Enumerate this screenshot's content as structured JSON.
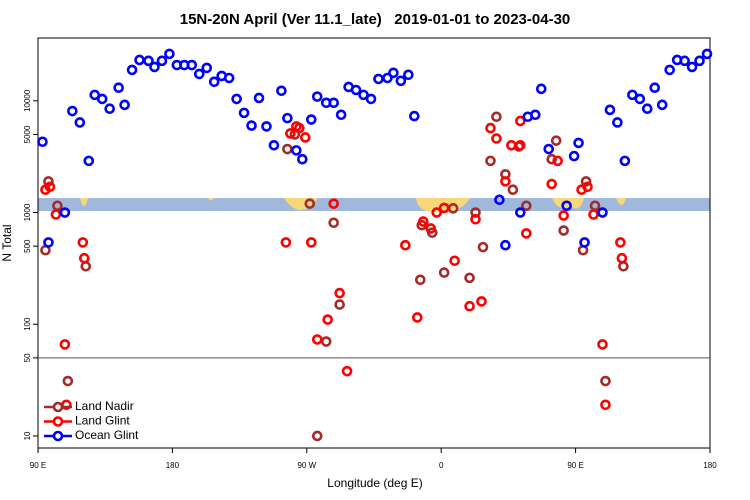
{
  "chart_data": {
    "type": "scatter",
    "title": "15N-20N April (Ver 11.1_late)   2019-01-01 to 2023-04-30",
    "xlabel": "Longitude (deg E)",
    "ylabel": "N Total",
    "xlim": [
      90,
      540
    ],
    "xticks": [
      {
        "value": 90,
        "label": "90 E"
      },
      180,
      {
        "value": 270,
        "label": "90 W"
      },
      {
        "value": 360,
        "label": "0"
      },
      {
        "value": 450,
        "label": "90 E"
      },
      {
        "value": 540,
        "label": "180"
      }
    ],
    "ylim": [
      7.8,
      36500
    ],
    "yscale": "log",
    "yticks": [
      10,
      50,
      100,
      500,
      1000,
      5000,
      10000
    ],
    "reference_line": 50,
    "legend": "lower left",
    "series": [
      {
        "name": "Land Nadir",
        "color": "#a52a2a",
        "x": [
          95,
          97,
          103,
          110,
          122,
          257,
          262,
          272,
          277,
          283,
          288,
          292,
          346,
          347,
          354,
          362,
          368,
          379,
          383,
          388,
          393,
          397,
          403,
          408,
          412,
          417,
          434,
          437,
          442,
          455,
          457,
          463,
          470,
          482
        ],
        "values": [
          460,
          1900,
          1150,
          31,
          330,
          3700,
          5000,
          1200,
          10,
          70,
          810,
          150,
          250,
          770,
          660,
          290,
          1090,
          260,
          1000,
          490,
          2900,
          7200,
          2200,
          1600,
          3900,
          1150,
          3000,
          4400,
          690,
          460,
          1900,
          1150,
          31,
          330
        ]
      },
      {
        "name": "Land Glint",
        "color": "#ff0000",
        "x": [
          95,
          98,
          102,
          108,
          109,
          120,
          121,
          256,
          259,
          263,
          265,
          269,
          273,
          277,
          284,
          288,
          292,
          297,
          336,
          344,
          348,
          353,
          357,
          362,
          369,
          379,
          383,
          387,
          393,
          397,
          403,
          407,
          413,
          413,
          417,
          434,
          438,
          442,
          454,
          458,
          462,
          468,
          470,
          480,
          481
        ],
        "values": [
          1600,
          1700,
          960,
          66,
          19,
          540,
          390,
          540,
          5100,
          5900,
          5700,
          4700,
          540,
          73,
          110,
          1200,
          190,
          38,
          510,
          115,
          830,
          720,
          1000,
          1100,
          370,
          145,
          870,
          160,
          5700,
          4600,
          1900,
          4000,
          4000,
          6600,
          650,
          1800,
          2900,
          940,
          1600,
          1700,
          960,
          66,
          19,
          540,
          390
        ]
      },
      {
        "name": "Ocean Glint",
        "color": "#0000ff",
        "x": [
          93,
          97,
          108,
          113,
          118,
          124,
          128,
          133,
          138,
          144,
          148,
          153,
          158,
          164,
          168,
          173,
          178,
          183,
          188,
          193,
          198,
          203,
          208,
          213,
          218,
          223,
          228,
          233,
          238,
          243,
          248,
          253,
          257,
          263,
          267,
          273,
          277,
          283,
          288,
          293,
          298,
          303,
          308,
          313,
          318,
          324,
          328,
          333,
          338,
          342,
          399,
          403,
          413,
          418,
          423,
          427,
          432,
          444,
          449,
          452,
          456,
          468,
          473,
          478,
          483,
          488,
          493,
          498,
          503,
          508,
          513,
          518,
          523,
          528,
          533,
          538
        ],
        "values": [
          4300,
          540,
          1000,
          8100,
          6400,
          2900,
          11300,
          10400,
          8500,
          13100,
          9200,
          18900,
          23200,
          22800,
          20100,
          22800,
          26300,
          20900,
          20900,
          20900,
          17400,
          19700,
          14800,
          16700,
          16000,
          10400,
          7800,
          6000,
          10600,
          5900,
          4000,
          12300,
          7000,
          3600,
          3000,
          6800,
          10900,
          9600,
          9600,
          7500,
          13300,
          12500,
          11300,
          10400,
          15700,
          16000,
          17800,
          15100,
          17100,
          7300,
          1300,
          510,
          1000,
          7200,
          7500,
          12800,
          3700,
          1150,
          3200,
          4200,
          540,
          1000,
          8300,
          6400,
          2900,
          11300,
          10400,
          8500,
          13100,
          9200,
          18900,
          23200,
          22800,
          20100,
          22800,
          26300
        ]
      }
    ]
  }
}
